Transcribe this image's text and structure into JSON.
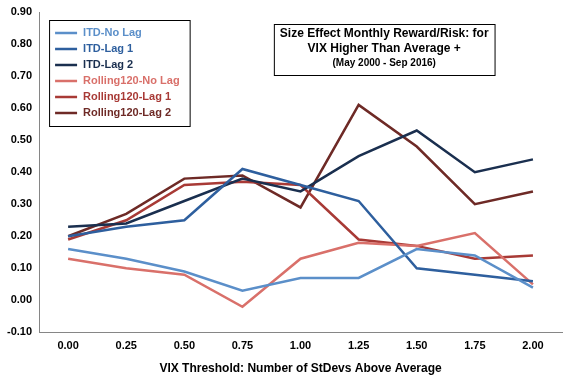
{
  "chart_data": {
    "type": "line",
    "title": "Size Effect Monthly Reward/Risk: for VIX Higher Than Average +",
    "subtitle": "(May 2000 - Sep 2016)",
    "x_label": "VIX Threshold: Number of StDevs Above Average",
    "categories": [
      "0.00",
      "0.25",
      "0.50",
      "0.75",
      "1.00",
      "1.25",
      "1.50",
      "1.75",
      "2.00"
    ],
    "series": [
      {
        "name": "ITD-No Lag",
        "color": "#5b8fc9",
        "values": [
          0.16,
          0.13,
          0.09,
          0.03,
          0.07,
          0.07,
          0.16,
          0.14,
          0.04
        ]
      },
      {
        "name": "ITD-Lag 1",
        "color": "#2e5f9e",
        "values": [
          0.2,
          0.23,
          0.25,
          0.41,
          0.36,
          0.31,
          0.1,
          0.08,
          0.06
        ]
      },
      {
        "name": "ITD-Lag 2",
        "color": "#1a2f4f",
        "values": [
          0.23,
          0.24,
          0.31,
          0.38,
          0.34,
          0.45,
          0.53,
          0.4,
          0.44
        ]
      },
      {
        "name": "Rolling120-No Lag",
        "color": "#d9706a",
        "values": [
          0.13,
          0.1,
          0.08,
          -0.02,
          0.13,
          0.18,
          0.17,
          0.21,
          0.05
        ]
      },
      {
        "name": "Rolling120-Lag 1",
        "color": "#a83a36",
        "values": [
          0.19,
          0.25,
          0.36,
          0.37,
          0.36,
          0.19,
          0.17,
          0.13,
          0.14
        ]
      },
      {
        "name": "Rolling120-Lag 2",
        "color": "#6e2a26",
        "values": [
          0.2,
          0.27,
          0.38,
          0.39,
          0.29,
          0.61,
          0.48,
          0.3,
          0.34
        ]
      }
    ],
    "ylim": [
      -0.1,
      0.9
    ],
    "yticks": [
      {
        "value": -0.1,
        "label": "-0.10"
      },
      {
        "value": 0,
        "label": "0.00"
      },
      {
        "value": 0.1,
        "label": "0.10"
      },
      {
        "value": 0.2,
        "label": "0.20"
      },
      {
        "value": 0.3,
        "label": "0.30"
      },
      {
        "value": 0.4,
        "label": "0.40"
      },
      {
        "value": 0.5,
        "label": "0.50"
      },
      {
        "value": 0.6,
        "label": "0.60"
      },
      {
        "value": 0.7,
        "label": "0.70"
      },
      {
        "value": 0.8,
        "label": "0.80"
      },
      {
        "value": 0.9,
        "label": "0.90"
      }
    ],
    "grid": false,
    "legend": "upper left"
  }
}
